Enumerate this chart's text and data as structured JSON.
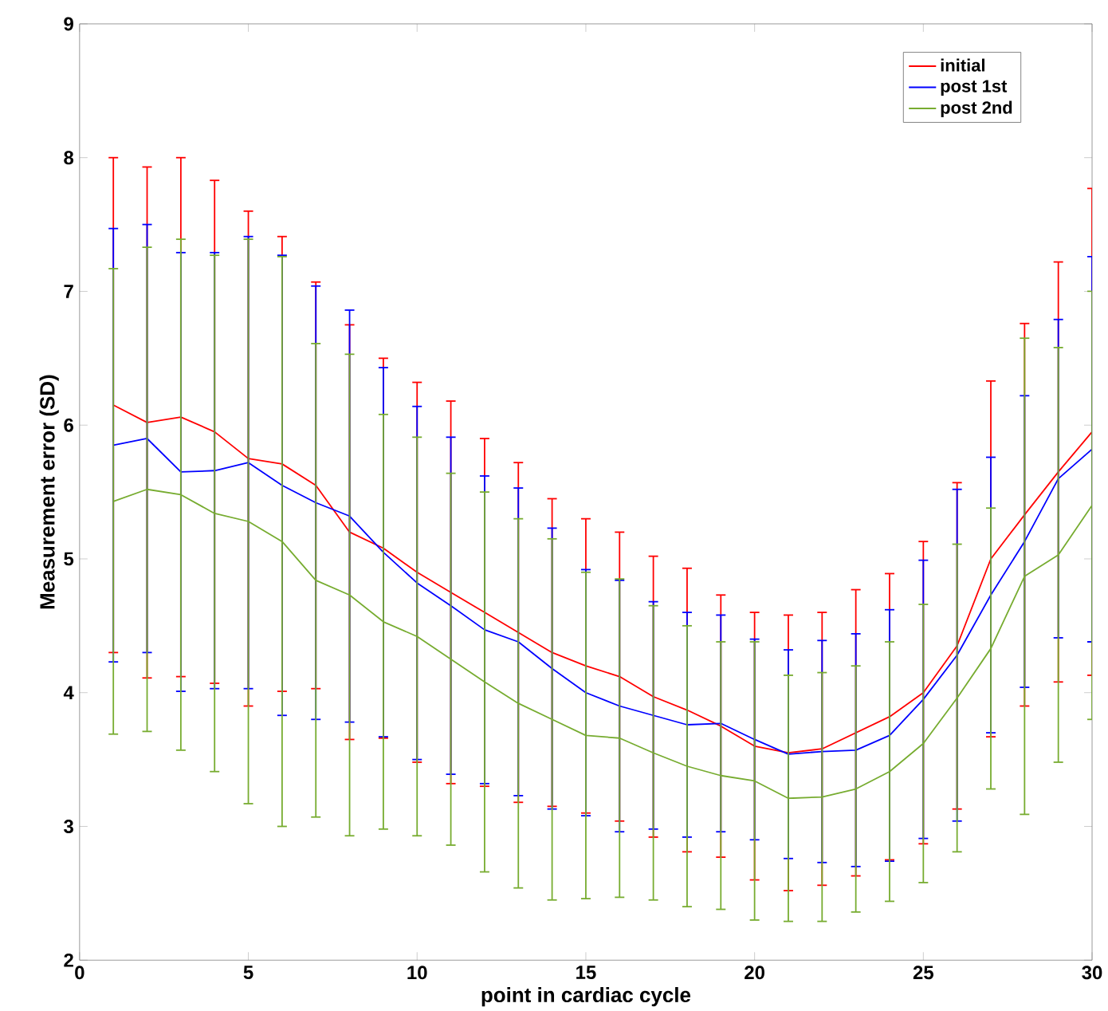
{
  "chart_data": {
    "type": "line",
    "xlabel": "point in cardiac cycle",
    "ylabel": "Measurement error (SD)",
    "x": [
      1,
      2,
      3,
      4,
      5,
      6,
      7,
      8,
      9,
      10,
      11,
      12,
      13,
      14,
      15,
      16,
      17,
      18,
      19,
      20,
      21,
      22,
      23,
      24,
      25,
      26,
      27,
      28,
      29,
      30
    ],
    "xlim": [
      0,
      30
    ],
    "xticks": [
      0,
      5,
      10,
      15,
      20,
      25,
      30
    ],
    "ylim": [
      2,
      9
    ],
    "yticks": [
      2,
      3,
      4,
      5,
      6,
      7,
      8,
      9
    ],
    "grid": false,
    "legend": "top right",
    "marker": "none",
    "line_style": "solid",
    "series": [
      {
        "name": "initial",
        "color": "#ff0000",
        "values": [
          6.15,
          6.02,
          6.06,
          5.95,
          5.75,
          5.71,
          5.55,
          5.2,
          5.08,
          4.9,
          4.75,
          4.6,
          4.45,
          4.3,
          4.2,
          4.12,
          3.97,
          3.87,
          3.75,
          3.6,
          3.55,
          3.58,
          3.7,
          3.82,
          4.0,
          4.35,
          5.0,
          5.33,
          5.65,
          5.95
        ],
        "errors": [
          1.85,
          1.91,
          1.94,
          1.88,
          1.85,
          1.7,
          1.52,
          1.55,
          1.42,
          1.42,
          1.43,
          1.3,
          1.27,
          1.15,
          1.1,
          1.08,
          1.05,
          1.06,
          0.98,
          1.0,
          1.03,
          1.02,
          1.07,
          1.07,
          1.13,
          1.22,
          1.33,
          1.43,
          1.57,
          1.82
        ]
      },
      {
        "name": "post 1st",
        "color": "#0000ff",
        "values": [
          5.85,
          5.9,
          5.65,
          5.66,
          5.72,
          5.55,
          5.42,
          5.32,
          5.05,
          4.82,
          4.65,
          4.47,
          4.38,
          4.18,
          4.0,
          3.9,
          3.83,
          3.76,
          3.77,
          3.65,
          3.54,
          3.56,
          3.57,
          3.68,
          3.95,
          4.28,
          4.73,
          5.13,
          5.6,
          5.82
        ],
        "errors": [
          1.62,
          1.6,
          1.64,
          1.63,
          1.69,
          1.72,
          1.62,
          1.54,
          1.38,
          1.32,
          1.26,
          1.15,
          1.15,
          1.05,
          0.92,
          0.94,
          0.85,
          0.84,
          0.81,
          0.75,
          0.78,
          0.83,
          0.87,
          0.94,
          1.04,
          1.24,
          1.03,
          1.09,
          1.19,
          1.44
        ]
      },
      {
        "name": "post 2nd",
        "color": "#77ac30",
        "values": [
          5.43,
          5.52,
          5.48,
          5.34,
          5.28,
          5.13,
          4.84,
          4.73,
          4.53,
          4.42,
          4.25,
          4.08,
          3.92,
          3.8,
          3.68,
          3.66,
          3.55,
          3.45,
          3.38,
          3.34,
          3.21,
          3.22,
          3.28,
          3.41,
          3.62,
          3.96,
          4.33,
          4.87,
          5.03,
          5.4
        ],
        "errors": [
          1.74,
          1.81,
          1.91,
          1.93,
          2.11,
          2.13,
          1.77,
          1.8,
          1.55,
          1.49,
          1.39,
          1.42,
          1.38,
          1.35,
          1.22,
          1.19,
          1.1,
          1.05,
          1.0,
          1.04,
          0.92,
          0.93,
          0.92,
          0.97,
          1.04,
          1.15,
          1.05,
          1.78,
          1.55,
          1.6
        ]
      }
    ]
  }
}
